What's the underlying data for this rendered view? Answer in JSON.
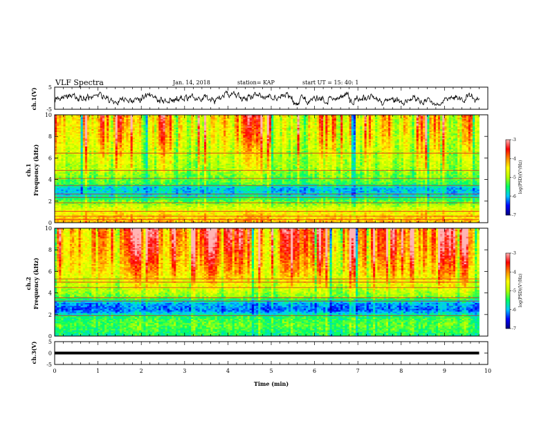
{
  "header": {
    "title": "VLF Spectra",
    "date": "Jan. 14, 2018",
    "station": "station= KAP",
    "start": "start  UT  =   15: 40: 1"
  },
  "colors": {
    "trace": "#000000",
    "colormap": [
      "#000080",
      "#0000ff",
      "#00c8ff",
      "#00ff64",
      "#b4ff00",
      "#ffff00",
      "#ff8c00",
      "#ff0000",
      "#ffb4b4",
      "#ffffff"
    ]
  },
  "chart_data": [
    {
      "type": "line",
      "panel": "ch1-waveform",
      "ylabel": "ch.1(V)",
      "ylim": [
        -5,
        5
      ],
      "yticks": [
        "5",
        "-5"
      ],
      "x_range_min": [
        0,
        10
      ],
      "description_values": "noisy waveform, amplitude mostly within about -2.5 to 2.5 V, data ends near 9.8 min"
    },
    {
      "type": "heatmap",
      "panel": "ch1-spectrogram",
      "ylabel_top": "ch.1",
      "ylabel": "Frequency  (kHz)",
      "ylim": [
        0,
        10
      ],
      "yticks": [
        "0",
        "2",
        "4",
        "6",
        "8",
        "10"
      ],
      "xlim": [
        0,
        10
      ],
      "data_end_min": 9.8,
      "colorbar": {
        "min": -7,
        "max": -3,
        "ticks": [
          "-3",
          "-4",
          "-5",
          "-6",
          "-7"
        ],
        "label": "log(PSD)(V²/Hz)"
      },
      "frequency_profile_kHz_logPSD": [
        [
          0,
          -4.2
        ],
        [
          0.6,
          -4.4
        ],
        [
          1.2,
          -4.7
        ],
        [
          2.0,
          -5.3
        ],
        [
          2.6,
          -5.9
        ],
        [
          3.2,
          -6.0
        ],
        [
          3.6,
          -5.4
        ],
        [
          4.4,
          -5.2
        ],
        [
          5.0,
          -5.0
        ],
        [
          6.0,
          -4.9
        ],
        [
          8.0,
          -4.6
        ],
        [
          10.0,
          -4.5
        ]
      ],
      "horizontal_lines_kHz": [
        0.3,
        0.6,
        1.05,
        1.85,
        2.35,
        2.65,
        3.45,
        4.1,
        4.85,
        6.45
      ]
    },
    {
      "type": "heatmap",
      "panel": "ch2-spectrogram",
      "ylabel_top": "ch.2",
      "ylabel": "Frequency  (kHz)",
      "ylim": [
        0,
        10
      ],
      "yticks": [
        "0",
        "2",
        "4",
        "6",
        "8",
        "10"
      ],
      "xlim": [
        0,
        10
      ],
      "data_end_min": 9.8,
      "colorbar": {
        "min": -7,
        "max": -3,
        "ticks": [
          "-3",
          "-4",
          "-5",
          "-6",
          "-7"
        ],
        "label": "log(PSD)(V²/Hz)"
      },
      "frequency_profile_kHz_logPSD": [
        [
          0,
          -5.6
        ],
        [
          1.0,
          -5.3
        ],
        [
          1.8,
          -5.5
        ],
        [
          2.4,
          -6.3
        ],
        [
          3.0,
          -6.1
        ],
        [
          3.6,
          -5.2
        ],
        [
          4.6,
          -4.8
        ],
        [
          6.0,
          -4.4
        ],
        [
          8.0,
          -4.1
        ],
        [
          10.0,
          -4.0
        ]
      ],
      "horizontal_lines_kHz": [
        1.9,
        3.25,
        3.55,
        4.5,
        5.0,
        5.3
      ]
    },
    {
      "type": "line",
      "panel": "ch3-waveform",
      "ylabel": "ch.3(V)",
      "ylim": [
        -5,
        5
      ],
      "yticks": [
        "5",
        "0",
        "-5"
      ],
      "xlim": [
        0,
        10
      ],
      "xticks": [
        "0",
        "1",
        "2",
        "3",
        "4",
        "5",
        "6",
        "7",
        "8",
        "9",
        "10"
      ],
      "xlabel": "Time  (min)",
      "constant_value_V": 0,
      "data_end_min": 9.8
    }
  ]
}
